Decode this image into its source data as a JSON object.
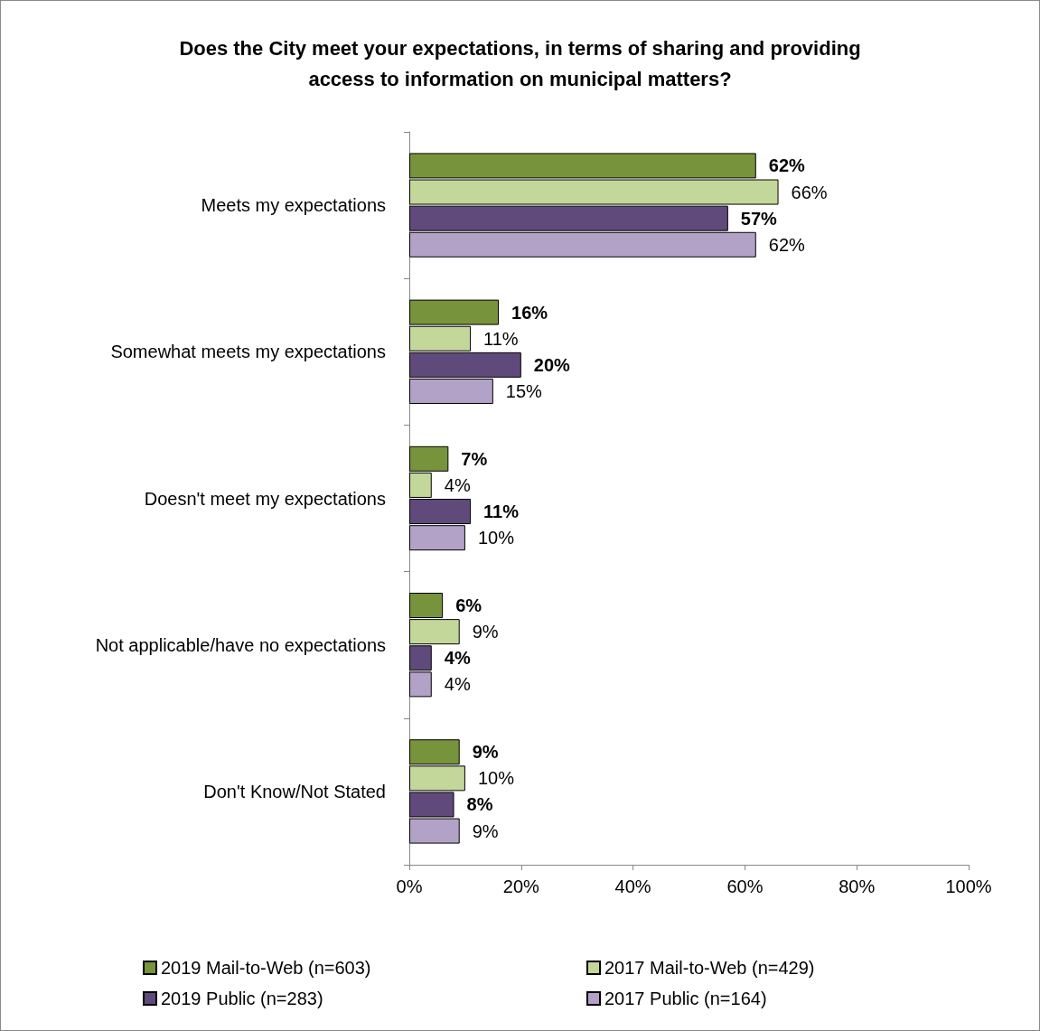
{
  "chart_data": {
    "type": "bar",
    "orientation": "horizontal",
    "title": "Does the City meet your expectations, in terms of sharing and providing\naccess to information on municipal matters?",
    "categories": [
      "Meets my expectations",
      "Somewhat meets my expectations",
      "Doesn't meet my expectations",
      "Not applicable/have no expectations",
      "Don't Know/Not Stated"
    ],
    "series": [
      {
        "name": "2019 Mail-to-Web (n=603)",
        "color": "#77933c",
        "values": [
          62,
          16,
          7,
          6,
          9
        ],
        "value_labels": [
          "62%",
          "16%",
          "7%",
          "6%",
          "9%"
        ]
      },
      {
        "name": "2017 Mail-to-Web (n=429)",
        "color": "#c4d79b",
        "values": [
          66,
          11,
          4,
          9,
          10
        ],
        "value_labels": [
          "66%",
          "11%",
          "4%",
          "9%",
          "10%"
        ]
      },
      {
        "name": "2019 Public (n=283)",
        "color": "#604a7b",
        "values": [
          57,
          20,
          11,
          4,
          8
        ],
        "value_labels": [
          "57%",
          "20%",
          "11%",
          "4%",
          "8%"
        ]
      },
      {
        "name": "2017 Public (n=164)",
        "color": "#b3a2c7",
        "values": [
          62,
          15,
          10,
          4,
          9
        ],
        "value_labels": [
          "62%",
          "15%",
          "10%",
          "4%",
          "9%"
        ]
      }
    ],
    "xlim": [
      0,
      100
    ],
    "xticks": [
      {
        "value": 0,
        "label": "0%"
      },
      {
        "value": 20,
        "label": "20%"
      },
      {
        "value": 40,
        "label": "40%"
      },
      {
        "value": 60,
        "label": "60%"
      },
      {
        "value": 80,
        "label": "80%"
      },
      {
        "value": 100,
        "label": "100%"
      }
    ],
    "grid": false,
    "legend": "bottom"
  }
}
